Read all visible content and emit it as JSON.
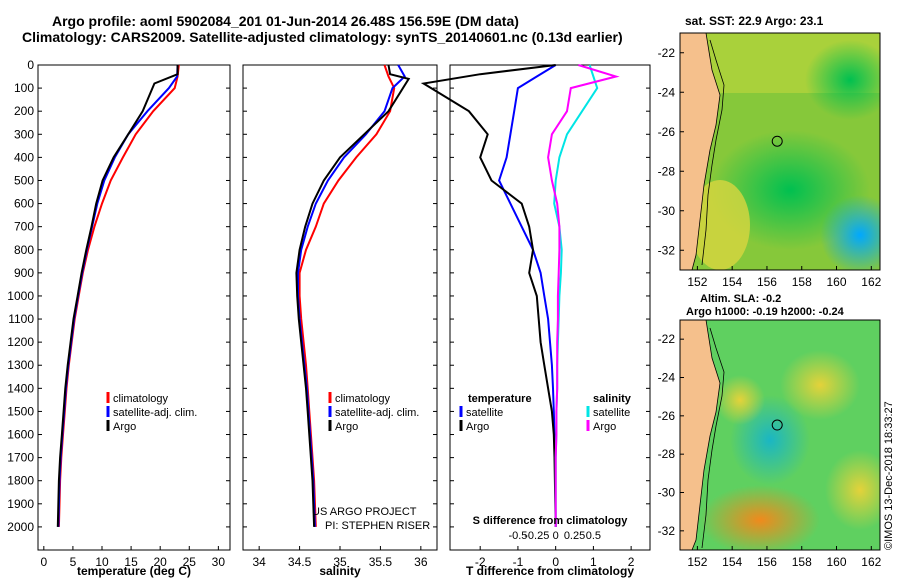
{
  "header": {
    "title_line1": "Argo profile: aoml 5902084_201 01-Jun-2014 26.48S 156.59E (DM data)",
    "title_line2": "Climatology: CARS2009. Satellite-adjusted climatology: synTS_20140601.nc (0.13d earlier)"
  },
  "colors": {
    "climatology": "#ff0000",
    "satellite": "#0000ff",
    "argo": "#000000",
    "sal_satellite": "#00e5e5",
    "sal_argo": "#ff00ff",
    "land": "#f5c08c"
  },
  "chart_data": [
    {
      "id": "temperature",
      "type": "line",
      "xlabel": "temperature (deg C)",
      "ylabel": "",
      "xlim": [
        -1,
        32
      ],
      "ylim": [
        2100,
        0
      ],
      "xticks": [
        0,
        5,
        10,
        15,
        20,
        25,
        30
      ],
      "yticks": [
        0,
        100,
        200,
        300,
        400,
        500,
        600,
        700,
        800,
        900,
        1000,
        1100,
        1200,
        1300,
        1400,
        1500,
        1600,
        1700,
        1800,
        1900,
        2000
      ],
      "legend": [
        "climatology",
        "satellite-adj. clim.",
        "Argo"
      ],
      "series": [
        {
          "name": "climatology",
          "color": "#ff0000",
          "x": [
            23.2,
            23.0,
            22.5,
            18.8,
            15.8,
            13.6,
            11.5,
            10.0,
            8.7,
            7.6,
            6.7,
            6.0,
            5.3,
            4.8,
            4.3,
            3.9,
            3.6,
            3.3,
            3.0,
            2.8,
            2.6
          ],
          "y": [
            0,
            50,
            100,
            200,
            300,
            400,
            500,
            600,
            700,
            800,
            900,
            1000,
            1100,
            1200,
            1300,
            1400,
            1500,
            1600,
            1700,
            1800,
            2000
          ]
        },
        {
          "name": "satellite-adj. clim.",
          "color": "#0000ff",
          "x": [
            23.0,
            22.9,
            21.5,
            17.8,
            14.5,
            12.2,
            10.4,
            9.2,
            8.3,
            7.4,
            6.6,
            5.9,
            5.2,
            4.7,
            4.2,
            3.8,
            3.5,
            3.2,
            2.9,
            2.7,
            2.5
          ],
          "y": [
            0,
            50,
            100,
            200,
            300,
            400,
            500,
            600,
            700,
            800,
            900,
            1000,
            1100,
            1200,
            1300,
            1400,
            1500,
            1600,
            1700,
            1800,
            2000
          ]
        },
        {
          "name": "Argo",
          "color": "#000000",
          "x": [
            23.0,
            23.0,
            19.0,
            17.0,
            14.5,
            12.0,
            10.1,
            9.0,
            8.2,
            7.3,
            6.5,
            5.8,
            5.1,
            4.6,
            4.1,
            3.7,
            3.4,
            3.1,
            2.8,
            2.6,
            2.4
          ],
          "y": [
            0,
            40,
            80,
            200,
            300,
            400,
            500,
            600,
            700,
            800,
            900,
            1000,
            1100,
            1200,
            1300,
            1400,
            1500,
            1600,
            1700,
            1800,
            2000
          ]
        }
      ]
    },
    {
      "id": "salinity",
      "type": "line",
      "xlabel": "salinity",
      "xlim": [
        33.8,
        36.2
      ],
      "ylim": [
        2100,
        0
      ],
      "xticks": [
        34,
        34.5,
        35,
        35.5,
        36
      ],
      "legend": [
        "climatology",
        "satellite-adj. clim.",
        "Argo"
      ],
      "annotation": [
        "US ARGO PROJECT",
        "PI: STEPHEN RISER"
      ],
      "series": [
        {
          "name": "climatology",
          "color": "#ff0000",
          "x": [
            35.55,
            35.6,
            35.67,
            35.62,
            35.45,
            35.2,
            34.98,
            34.8,
            34.7,
            34.58,
            34.5,
            34.5,
            34.52,
            34.55,
            34.58,
            34.6,
            34.62,
            34.64,
            34.66,
            34.68,
            34.7
          ],
          "y": [
            0,
            50,
            100,
            200,
            300,
            400,
            500,
            600,
            700,
            800,
            900,
            1000,
            1100,
            1200,
            1300,
            1400,
            1500,
            1600,
            1700,
            1800,
            2000
          ]
        },
        {
          "name": "satellite-adj. clim.",
          "color": "#0000ff",
          "x": [
            35.72,
            35.8,
            35.65,
            35.55,
            35.32,
            35.05,
            34.85,
            34.7,
            34.6,
            34.52,
            34.48,
            34.48,
            34.5,
            34.53,
            34.56,
            34.59,
            34.61,
            34.63,
            34.65,
            34.67,
            34.69
          ],
          "y": [
            0,
            50,
            100,
            200,
            300,
            400,
            500,
            600,
            700,
            800,
            900,
            1000,
            1100,
            1200,
            1300,
            1400,
            1500,
            1600,
            1700,
            1800,
            2000
          ]
        },
        {
          "name": "Argo",
          "color": "#000000",
          "x": [
            35.6,
            35.62,
            35.85,
            35.6,
            35.3,
            35.0,
            34.8,
            34.66,
            34.57,
            34.5,
            34.46,
            34.47,
            34.49,
            34.52,
            34.55,
            34.58,
            34.6,
            34.62,
            34.64,
            34.66,
            34.68
          ],
          "y": [
            0,
            40,
            60,
            200,
            300,
            400,
            500,
            600,
            700,
            800,
            900,
            1000,
            1100,
            1200,
            1300,
            1400,
            1500,
            1600,
            1700,
            1800,
            2000
          ]
        }
      ]
    },
    {
      "id": "difference",
      "type": "line",
      "xlabel": "T difference from climatology",
      "xlabel_top": "S difference from climatology",
      "xlim": [
        -2.8,
        2.5
      ],
      "ylim": [
        2100,
        0
      ],
      "xticks_bottom": [
        "-2",
        "-1",
        "0",
        "1",
        "2"
      ],
      "xticks_top": [
        "-0.5",
        "-0.25",
        "0",
        "0.25",
        "0.5"
      ],
      "legend_left_title": "temperature",
      "legend_right_title": "salinity",
      "legend_left": [
        "satellite",
        "Argo"
      ],
      "legend_right": [
        "satellite",
        "Argo"
      ],
      "series": [
        {
          "name": "T satellite",
          "color": "#0000ff",
          "x": [
            0.0,
            -0.5,
            -1.0,
            -1.1,
            -1.2,
            -1.3,
            -1.5,
            -1.2,
            -0.9,
            -0.6,
            -0.4,
            -0.3,
            -0.2,
            -0.15,
            -0.1,
            -0.07,
            -0.05,
            -0.03,
            -0.02,
            -0.01,
            0
          ],
          "y": [
            0,
            50,
            100,
            200,
            300,
            400,
            500,
            600,
            700,
            800,
            900,
            1000,
            1100,
            1200,
            1300,
            1400,
            1500,
            1600,
            1700,
            1800,
            2000
          ]
        },
        {
          "name": "T Argo",
          "color": "#000000",
          "x": [
            0.0,
            -2.0,
            -3.5,
            -2.3,
            -1.8,
            -2.0,
            -1.7,
            -0.9,
            -0.7,
            -0.6,
            -0.7,
            -0.5,
            -0.45,
            -0.4,
            -0.3,
            -0.2,
            -0.1,
            -0.05,
            -0.03,
            -0.02,
            0
          ],
          "y": [
            0,
            40,
            80,
            200,
            300,
            400,
            500,
            600,
            700,
            800,
            900,
            1000,
            1100,
            1200,
            1300,
            1400,
            1500,
            1600,
            1700,
            1800,
            2000
          ]
        },
        {
          "name": "S satellite",
          "color": "#00e5e5",
          "x": [
            0.45,
            0.5,
            0.55,
            0.35,
            0.15,
            0.05,
            0.0,
            -0.02,
            0.05,
            0.08,
            0.07,
            0.05,
            0.04,
            0.03,
            0.02,
            0.02,
            0.01,
            0.01,
            0.0,
            0.0,
            0.0
          ],
          "y": [
            0,
            50,
            100,
            200,
            300,
            400,
            500,
            600,
            700,
            800,
            900,
            1000,
            1100,
            1200,
            1300,
            1400,
            1500,
            1600,
            1700,
            1800,
            2000
          ]
        },
        {
          "name": "S Argo",
          "color": "#ff00ff",
          "x": [
            0.3,
            0.8,
            0.2,
            0.15,
            -0.05,
            -0.1,
            -0.05,
            0.02,
            0.05,
            0.05,
            0.04,
            0.03,
            0.03,
            0.02,
            0.02,
            0.02,
            0.01,
            0.01,
            0.0,
            0.0,
            0.0
          ],
          "y": [
            0,
            50,
            100,
            200,
            300,
            400,
            500,
            600,
            700,
            800,
            900,
            1000,
            1100,
            1200,
            1300,
            1400,
            1500,
            1600,
            1700,
            1800,
            2000
          ]
        }
      ]
    },
    {
      "id": "sst-map",
      "type": "heatmap",
      "title": "sat. SST: 22.9  Argo: 23.1",
      "xticks": [
        "152",
        "154",
        "156",
        "158",
        "160",
        "162"
      ],
      "yticks": [
        "-22",
        "-24",
        "-26",
        "-28",
        "-30",
        "-32"
      ],
      "xlim": [
        151,
        162.5
      ],
      "ylim": [
        -33,
        -21
      ],
      "marker": {
        "lon": 156.59,
        "lat": -26.48
      }
    },
    {
      "id": "sla-map",
      "type": "heatmap",
      "title_line1": "Altim. SLA: -0.2",
      "title_line2": "Argo h1000: -0.19 h2000: -0.24",
      "xticks": [
        "152",
        "154",
        "156",
        "158",
        "160",
        "162"
      ],
      "yticks": [
        "-22",
        "-24",
        "-26",
        "-28",
        "-30",
        "-32"
      ],
      "xlim": [
        151,
        162.5
      ],
      "ylim": [
        -33,
        -21
      ],
      "marker": {
        "lon": 156.59,
        "lat": -26.48
      }
    }
  ],
  "side_label": "©IMOS 13-Dec-2018 18:33:27"
}
